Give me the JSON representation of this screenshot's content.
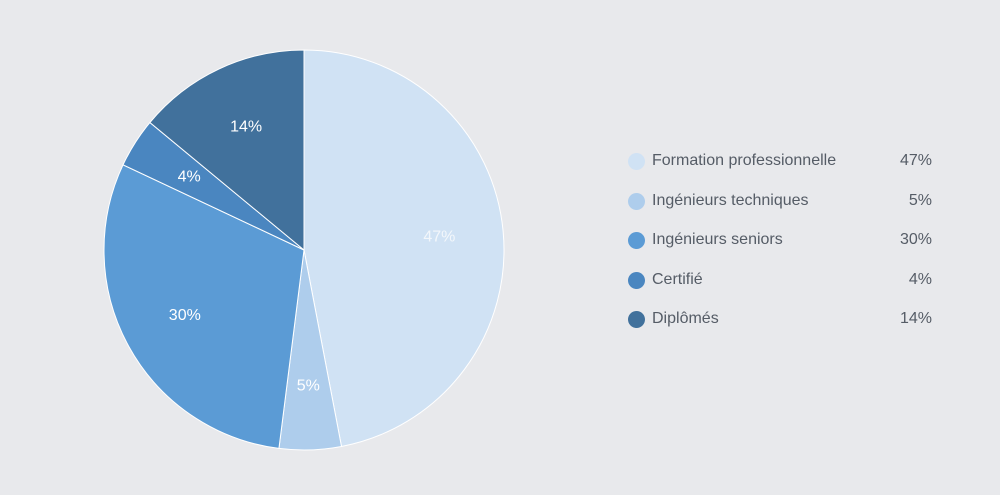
{
  "chart_data": {
    "type": "pie",
    "title": "",
    "start_angle_deg": 0,
    "direction": "clockwise",
    "legend_position": "right",
    "slices": [
      {
        "label": "Formation professionnelle",
        "value": 47,
        "display": "47%",
        "color": "#d0e2f4",
        "label_color": "#f3f7fb"
      },
      {
        "label": "Ingénieurs techniques",
        "value": 5,
        "display": "5%",
        "color": "#aecdec",
        "label_color": "#ffffff"
      },
      {
        "label": "Ingénieurs seniors",
        "value": 30,
        "display": "30%",
        "color": "#5b9bd5",
        "label_color": "#ffffff"
      },
      {
        "label": "Certifié",
        "value": 4,
        "display": "4%",
        "color": "#4a86c0",
        "label_color": "#ffffff"
      },
      {
        "label": "Diplômés",
        "value": 14,
        "display": "14%",
        "color": "#41719c",
        "label_color": "#ffffff"
      }
    ]
  }
}
